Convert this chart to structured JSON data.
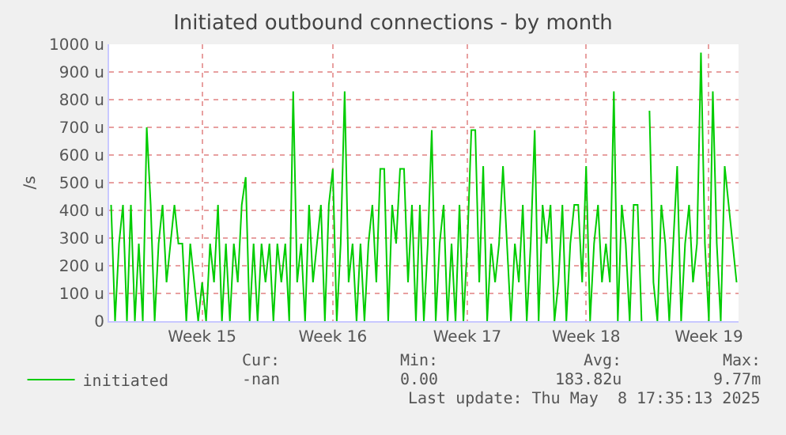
{
  "chart_data": {
    "type": "line",
    "title": "Initiated outbound connections - by month",
    "ylabel": "/s",
    "categories": [
      null,
      null,
      null,
      null,
      null,
      null,
      null,
      null,
      null,
      null,
      null,
      null,
      null,
      null,
      null,
      null,
      null,
      null,
      null,
      null,
      null,
      null,
      null,
      "Week 15",
      null,
      null,
      null,
      null,
      null,
      null,
      null,
      null,
      null,
      null,
      null,
      null,
      null,
      null,
      null,
      null,
      null,
      null,
      null,
      null,
      null,
      null,
      null,
      null,
      null,
      null,
      null,
      null,
      null,
      null,
      null,
      null,
      "Week 16",
      null,
      null,
      null,
      null,
      null,
      null,
      null,
      null,
      null,
      null,
      null,
      null,
      null,
      null,
      null,
      null,
      null,
      null,
      null,
      null,
      null,
      null,
      null,
      null,
      null,
      null,
      null,
      null,
      null,
      null,
      null,
      null,
      null,
      "Week 17",
      null,
      null,
      null,
      null,
      null,
      null,
      null,
      null,
      null,
      null,
      null,
      null,
      null,
      null,
      null,
      null,
      null,
      null,
      null,
      null,
      null,
      null,
      null,
      null,
      null,
      null,
      null,
      null,
      null,
      "Week 18",
      null,
      null,
      null,
      null,
      null,
      null,
      null,
      null,
      null,
      null,
      null,
      null,
      null,
      null,
      null,
      null,
      null,
      null,
      null,
      null,
      null,
      null,
      null,
      null,
      null,
      null,
      null,
      null,
      null,
      null,
      "Week 19",
      null,
      null,
      null,
      null,
      null,
      null,
      null
    ],
    "ylim": [
      0,
      1000
    ],
    "yticks": [
      0,
      {
        "value": 100,
        "label": "100 u"
      },
      {
        "value": 200,
        "label": "200 u"
      },
      {
        "value": 300,
        "label": "300 u"
      },
      {
        "value": 400,
        "label": "400 u"
      },
      {
        "value": 500,
        "label": "500 u"
      },
      {
        "value": 600,
        "label": "600 u"
      },
      {
        "value": 700,
        "label": "700 u"
      },
      {
        "value": 800,
        "label": "800 u"
      },
      {
        "value": 900,
        "label": "900 u"
      },
      {
        "value": 1000,
        "label": "1000 u"
      }
    ],
    "grid": true,
    "legend": "bottom left",
    "marker": "none",
    "line_style": "solid",
    "series": [
      {
        "name": "initiated",
        "color": "#00cc00",
        "values": [
          420,
          0,
          280,
          420,
          0,
          420,
          0,
          280,
          0,
          700,
          420,
          0,
          280,
          420,
          140,
          280,
          420,
          280,
          280,
          0,
          280,
          140,
          0,
          140,
          0,
          280,
          140,
          420,
          0,
          280,
          0,
          280,
          140,
          420,
          520,
          0,
          280,
          0,
          280,
          140,
          280,
          0,
          280,
          140,
          280,
          0,
          830,
          140,
          280,
          0,
          420,
          140,
          280,
          420,
          0,
          420,
          550,
          0,
          280,
          830,
          140,
          280,
          0,
          280,
          0,
          280,
          420,
          140,
          550,
          550,
          0,
          420,
          280,
          550,
          550,
          140,
          420,
          0,
          420,
          0,
          280,
          690,
          0,
          280,
          420,
          0,
          280,
          0,
          420,
          0,
          280,
          690,
          690,
          140,
          560,
          0,
          280,
          140,
          280,
          560,
          280,
          0,
          280,
          140,
          420,
          0,
          280,
          690,
          0,
          420,
          280,
          420,
          0,
          140,
          420,
          0,
          280,
          420,
          420,
          140,
          560,
          0,
          280,
          420,
          140,
          280,
          140,
          830,
          0,
          420,
          280,
          0,
          420,
          420,
          0,
          null,
          760,
          140,
          0,
          420,
          280,
          0,
          280,
          560,
          0,
          280,
          420,
          140,
          280,
          970,
          280,
          0,
          830,
          280,
          0,
          560,
          420,
          280,
          140
        ]
      }
    ],
    "annotations": [
      "Cur:",
      "Min:",
      "Avg:",
      "Max:",
      "-nan",
      "0.00",
      "183.82u",
      "9.77m",
      "Last update: Thu May  8 17:35:13 2025"
    ]
  }
}
